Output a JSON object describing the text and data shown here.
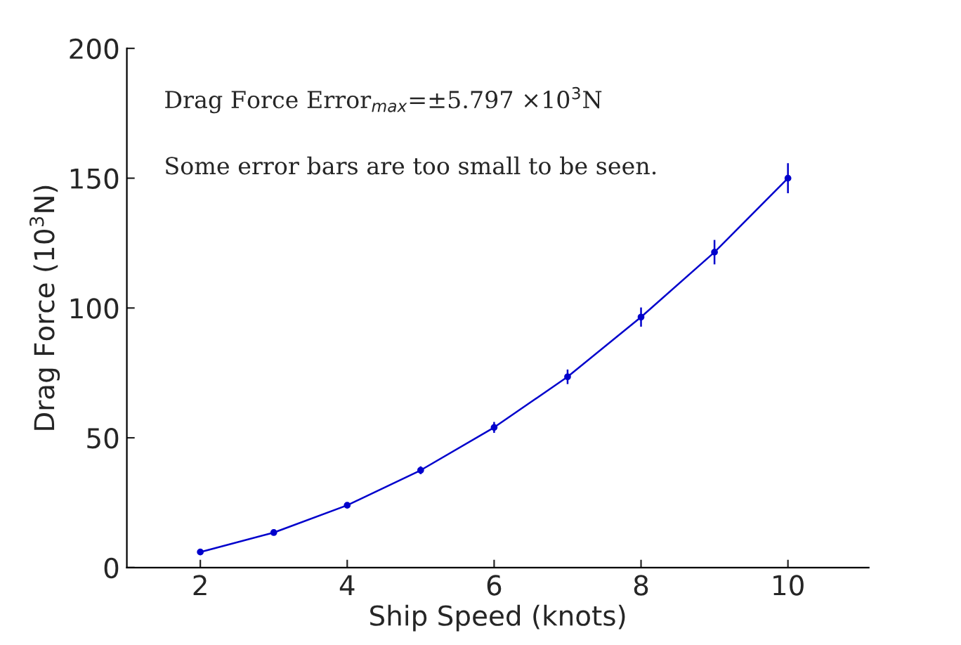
{
  "chart_data": {
    "type": "line",
    "xlabel": "Ship Speed (knots)",
    "ylabel": "Drag Force (10$^{3}$N)",
    "x": [
      2,
      3,
      4,
      5,
      6,
      7,
      8,
      9,
      10
    ],
    "series": [
      {
        "color": "#0000cc",
        "values": [
          6,
          13.5,
          24,
          37.5,
          54,
          73.5,
          96.5,
          121.5,
          150
        ],
        "errors": [
          null,
          null,
          null,
          1.5,
          2.1,
          2.8,
          3.7,
          4.7,
          5.797
        ]
      }
    ],
    "xlim": [
      1,
      11.1
    ],
    "xticks": [
      2,
      4,
      6,
      8,
      10
    ],
    "ylim": [
      0,
      200
    ],
    "yticks": [
      0,
      50,
      100,
      150,
      200
    ],
    "annotations": [
      "Drag Force Error$_{max}$=±5.797 ×10$^{3}$N",
      "Some error bars are too small to be seen."
    ],
    "marker": "circle",
    "line_style": "solid",
    "grid": false,
    "legend": false
  }
}
